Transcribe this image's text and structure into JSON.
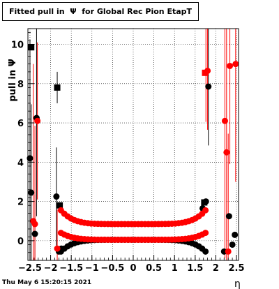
{
  "title": "Fitted pull in  Ψ  for Global Rec Pion EtapT",
  "timestamp": "Thu May  6 15:20:15 2021",
  "chart_data": {
    "type": "scatter",
    "title": "Fitted pull in  Ψ  for Global Rec Pion EtapT",
    "xlabel": "η",
    "ylabel": "pull in Ψ",
    "xlim": [
      -2.55,
      2.55
    ],
    "ylim": [
      -1.0,
      10.8
    ],
    "x_ticks": [
      "−2.5",
      "−2",
      "−1.5",
      "−1",
      "−0.5",
      "0",
      "0.5",
      "1",
      "1.5",
      "2",
      "2.5"
    ],
    "y_ticks": [
      "0",
      "2",
      "4",
      "6",
      "8",
      "10"
    ],
    "grid": true,
    "colors": {
      "black": "#000000",
      "red": "#ff0000"
    },
    "series": [
      {
        "color": "#000000",
        "marker": "square",
        "points": [
          {
            "x": -2.47,
            "y": 9.85
          },
          {
            "x": -1.84,
            "y": 7.8,
            "err": 0.8
          },
          {
            "x": -1.78,
            "y": 1.8
          },
          {
            "x": 1.72,
            "y": 1.95
          }
        ]
      },
      {
        "color": "#000000",
        "marker": "circle",
        "points": [
          {
            "x": -2.5,
            "y": 4.2,
            "err": 6.0
          },
          {
            "x": -2.47,
            "y": 2.45,
            "err": 4.5
          },
          {
            "x": -2.38,
            "y": 0.35,
            "err": 2.0
          },
          {
            "x": -2.34,
            "y": 6.25,
            "err": 5.0
          },
          {
            "x": -1.86,
            "y": 2.25,
            "err": 2.5
          },
          {
            "x": -1.8,
            "y": -0.55
          },
          {
            "x": -1.74,
            "y": -0.4
          },
          {
            "x": 1.68,
            "y": 1.65
          },
          {
            "x": 1.76,
            "y": 2.0
          },
          {
            "x": 1.82,
            "y": 7.85,
            "err": 3.0
          },
          {
            "x": 2.2,
            "y": -0.55
          },
          {
            "x": 2.32,
            "y": 1.25
          },
          {
            "x": 2.4,
            "y": -0.2
          },
          {
            "x": 2.46,
            "y": 0.3
          }
        ],
        "band": {
          "x_from": -1.75,
          "x_to": 1.75,
          "y_center": 0.05,
          "y_edge": -0.55
        }
      },
      {
        "color": "#ff0000",
        "marker": "circle",
        "points": [
          {
            "x": -2.42,
            "y": 1.0,
            "err": 8.0
          },
          {
            "x": -2.38,
            "y": 0.85,
            "err": 5.0
          },
          {
            "x": -2.32,
            "y": 6.1,
            "err": 4.0
          },
          {
            "x": -1.84,
            "y": -0.4,
            "err": 2.0
          },
          {
            "x": 1.76,
            "y": 8.55,
            "err": 2.5
          },
          {
            "x": 1.8,
            "y": 8.65,
            "err": 3.0
          },
          {
            "x": 2.22,
            "y": 6.1,
            "err": 7.0
          },
          {
            "x": 2.26,
            "y": 4.5,
            "err": 7.0
          },
          {
            "x": 2.3,
            "y": -0.55,
            "err": 6.0
          },
          {
            "x": 2.34,
            "y": 8.9,
            "err": 5.0
          },
          {
            "x": 2.48,
            "y": 9.0,
            "err": 6.0
          }
        ],
        "bands": [
          {
            "x_from": -1.75,
            "x_to": 1.75,
            "y_center": 0.85,
            "y_edge": 1.55
          },
          {
            "x_from": -1.75,
            "x_to": 1.75,
            "y_center": 0.05,
            "y_edge": 0.4
          }
        ]
      },
      {
        "color": "#ff0000",
        "marker": "square",
        "points": [
          {
            "x": 1.74,
            "y": 8.55
          }
        ]
      }
    ]
  }
}
